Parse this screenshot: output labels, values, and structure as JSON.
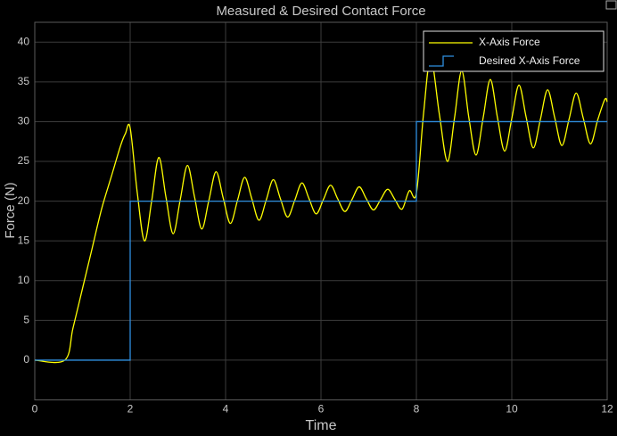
{
  "chart_data": {
    "type": "line",
    "title": "Measured & Desired Contact Force",
    "xlabel": "Time",
    "ylabel": "Force (N)",
    "xlim": [
      0,
      12
    ],
    "xticks": [
      0,
      2,
      4,
      6,
      8,
      10,
      12
    ],
    "ylim": [
      -5,
      42.5
    ],
    "yticks": [
      0,
      5,
      10,
      15,
      20,
      25,
      30,
      35,
      40
    ],
    "grid": true,
    "legend": "upper right",
    "series": [
      {
        "name": "X-Axis Force",
        "color": "#ffff00",
        "x": [
          0,
          0.63,
          0.8,
          1.0,
          1.2,
          1.4,
          1.6,
          1.8,
          1.9,
          2.0,
          2.15,
          2.3,
          2.45,
          2.6,
          2.75,
          2.9,
          3.05,
          3.2,
          3.35,
          3.5,
          3.65,
          3.8,
          3.95,
          4.1,
          4.25,
          4.4,
          4.55,
          4.7,
          4.85,
          5.0,
          5.15,
          5.3,
          5.45,
          5.6,
          5.75,
          5.9,
          6.05,
          6.2,
          6.35,
          6.5,
          6.65,
          6.8,
          6.95,
          7.1,
          7.25,
          7.4,
          7.55,
          7.7,
          7.85,
          8.0,
          8.15,
          8.3,
          8.48,
          8.65,
          8.8,
          8.95,
          9.1,
          9.25,
          9.4,
          9.55,
          9.7,
          9.85,
          10.0,
          10.15,
          10.3,
          10.45,
          10.6,
          10.75,
          10.9,
          11.05,
          11.2,
          11.35,
          11.5,
          11.65,
          11.8,
          11.95,
          12.0
        ],
        "values": [
          0,
          0,
          4,
          9,
          14,
          19,
          23,
          27,
          28.5,
          29.2,
          21,
          15,
          20,
          25.5,
          20.5,
          15.9,
          20.2,
          24.5,
          20.5,
          16.5,
          20.1,
          23.7,
          20.4,
          17.2,
          20.1,
          23,
          20.3,
          17.6,
          20.1,
          22.7,
          20.3,
          18.0,
          20.1,
          22.3,
          20.3,
          18.4,
          20.2,
          22.0,
          20.3,
          18.7,
          20.2,
          21.8,
          20.3,
          18.9,
          20.2,
          21.5,
          20.2,
          19.0,
          21.3,
          21,
          31,
          38,
          31,
          25,
          30.5,
          36.4,
          30.5,
          25.8,
          30.5,
          35.3,
          30.5,
          26.3,
          30.4,
          34.6,
          30.6,
          26.7,
          30.3,
          34,
          30.5,
          27,
          30.3,
          33.6,
          30.4,
          27.2,
          30.2,
          32.8,
          32.5
        ]
      },
      {
        "name": "Desired X-Axis Force",
        "color": "#2f8fe0",
        "x": [
          0,
          2,
          2,
          8,
          8,
          12
        ],
        "values": [
          0,
          0,
          20,
          20,
          30,
          30
        ]
      }
    ]
  }
}
